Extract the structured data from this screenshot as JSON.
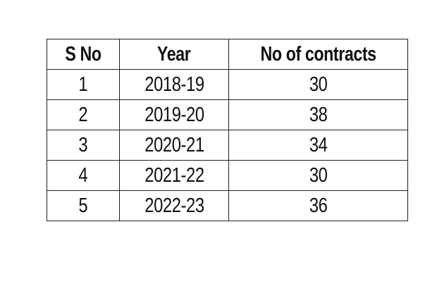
{
  "table": {
    "headers": [
      "S No",
      "Year",
      "No of contracts"
    ],
    "rows": [
      [
        "1",
        "2018-19",
        "30"
      ],
      [
        "2",
        "2019-20",
        "38"
      ],
      [
        "3",
        "2020-21",
        "34"
      ],
      [
        "4",
        "2021-22",
        "30"
      ],
      [
        "5",
        "2022-23",
        "36"
      ]
    ]
  }
}
